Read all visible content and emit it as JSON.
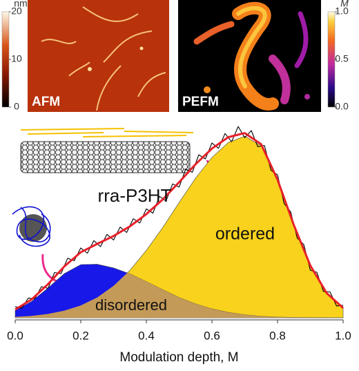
{
  "panels": [
    {
      "label": "AFM",
      "unit": "nm",
      "lim": [
        0,
        20
      ],
      "ticks": [
        0,
        10,
        20
      ]
    },
    {
      "label": "PEFM",
      "unit": "M",
      "lim": [
        0,
        1
      ],
      "ticks": [
        {
          "value": 0,
          "label": "0.0"
        },
        {
          "value": 0.5,
          "label": "0.5"
        },
        {
          "value": 1,
          "label": "1.0"
        }
      ]
    }
  ],
  "chart_data": {
    "type": "area",
    "xlabel": "Modulation depth, M",
    "annotation": "rra-P3HT",
    "xlim": [
      0,
      1
    ],
    "ylim": [
      0,
      100
    ],
    "xticks": [
      {
        "value": 0,
        "label": "0.0"
      },
      {
        "value": 0.2,
        "label": "0.2"
      },
      {
        "value": 0.4,
        "label": "0.4"
      },
      {
        "value": 0.6,
        "label": "0.6"
      },
      {
        "value": 0.8,
        "label": "0.8"
      },
      {
        "value": 1,
        "label": "1.0"
      }
    ],
    "x": [
      0,
      0.05,
      0.1,
      0.15,
      0.2,
      0.25,
      0.3,
      0.35,
      0.4,
      0.45,
      0.5,
      0.55,
      0.6,
      0.65,
      0.7,
      0.75,
      0.8,
      0.85,
      0.9,
      0.95,
      1
    ],
    "series": [
      {
        "name": "ordered",
        "color": "#f8d21c",
        "style": "fill",
        "values": [
          0.5,
          1.0,
          2.0,
          3.7,
          6.4,
          10.5,
          16.5,
          24.6,
          34.9,
          46.7,
          59.6,
          72.2,
          82.9,
          90.6,
          93.9,
          88.9,
          71.0,
          47.6,
          26.9,
          12.7,
          5.1
        ]
      },
      {
        "name": "disordered",
        "color": "#1818e8",
        "style": "fill",
        "values": [
          3.8,
          8.5,
          15.4,
          22.9,
          27.5,
          27.7,
          25.8,
          22.7,
          18.7,
          14.5,
          10.5,
          7.2,
          4.6,
          2.8,
          1.6,
          0.8,
          0.4,
          0.2,
          0.1,
          0,
          0
        ]
      },
      {
        "color": "#e8202a",
        "style": "line",
        "values": [
          4.3,
          9.5,
          17.4,
          26.6,
          33.9,
          38.2,
          42.3,
          47.3,
          53.6,
          61.2,
          70.1,
          79.4,
          87.5,
          93.4,
          95.5,
          89.7,
          71.4,
          47.8,
          27.0,
          12.7,
          5.1
        ]
      },
      {
        "color": "#000000",
        "style": "line",
        "x": [
          0,
          0.02,
          0.04,
          0.06,
          0.08,
          0.1,
          0.12,
          0.14,
          0.16,
          0.18,
          0.2,
          0.22,
          0.24,
          0.26,
          0.28,
          0.3,
          0.32,
          0.34,
          0.36,
          0.38,
          0.4,
          0.42,
          0.44,
          0.46,
          0.48,
          0.5,
          0.52,
          0.54,
          0.56,
          0.58,
          0.6,
          0.62,
          0.64,
          0.66,
          0.68,
          0.7,
          0.72,
          0.74,
          0.76,
          0.78,
          0.8,
          0.82,
          0.84,
          0.86,
          0.88,
          0.9,
          0.92,
          0.94,
          0.96,
          0.98,
          1
        ],
        "values": [
          5.8,
          4.9,
          10.2,
          9.8,
          16.1,
          15.2,
          23.4,
          22.9,
          30.8,
          29.5,
          36.1,
          33.4,
          39.9,
          36.8,
          43.1,
          40.2,
          46.9,
          44.1,
          51.2,
          49.0,
          56.3,
          54.1,
          62.8,
          60.4,
          69.2,
          67.6,
          76.9,
          75.2,
          84.3,
          82.1,
          90.4,
          87.6,
          95.3,
          91.0,
          98.9,
          93.1,
          96.8,
          88.4,
          89.1,
          76.2,
          73.9,
          59.1,
          54.8,
          41.2,
          37.9,
          24.6,
          23.5,
          13.6,
          13.4,
          6.1,
          6.5
        ]
      }
    ]
  }
}
